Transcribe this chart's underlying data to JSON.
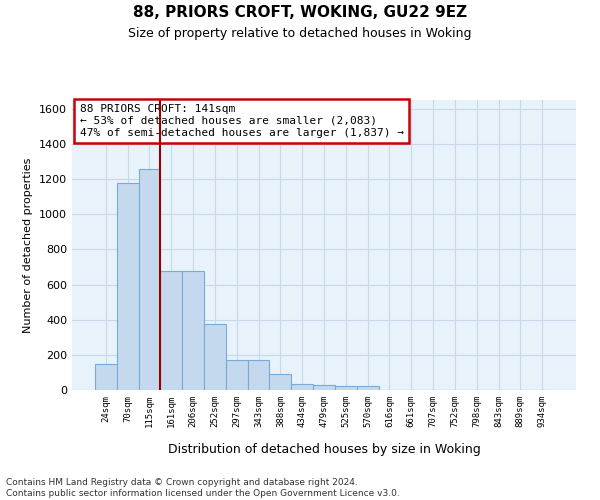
{
  "title": "88, PRIORS CROFT, WOKING, GU22 9EZ",
  "subtitle": "Size of property relative to detached houses in Woking",
  "xlabel": "Distribution of detached houses by size in Woking",
  "ylabel": "Number of detached properties",
  "bar_color": "#c5d9ee",
  "bar_edge_color": "#7aaad4",
  "grid_color": "#c8d8e8",
  "background_color": "#e8f2fb",
  "categories": [
    "24sqm",
    "70sqm",
    "115sqm",
    "161sqm",
    "206sqm",
    "252sqm",
    "297sqm",
    "343sqm",
    "388sqm",
    "434sqm",
    "479sqm",
    "525sqm",
    "570sqm",
    "616sqm",
    "661sqm",
    "707sqm",
    "752sqm",
    "798sqm",
    "843sqm",
    "889sqm",
    "934sqm"
  ],
  "values": [
    148,
    1175,
    1258,
    678,
    678,
    375,
    170,
    170,
    90,
    35,
    30,
    20,
    20,
    0,
    0,
    0,
    0,
    0,
    0,
    0,
    0
  ],
  "property_line_color": "#990000",
  "annotation_text": "88 PRIORS CROFT: 141sqm\n← 53% of detached houses are smaller (2,083)\n47% of semi-detached houses are larger (1,837) →",
  "annotation_box_color": "#ffffff",
  "annotation_edge_color": "#cc0000",
  "ylim": [
    0,
    1650
  ],
  "yticks": [
    0,
    200,
    400,
    600,
    800,
    1000,
    1200,
    1400,
    1600
  ],
  "footer_line1": "Contains HM Land Registry data © Crown copyright and database right 2024.",
  "footer_line2": "Contains public sector information licensed under the Open Government Licence v3.0."
}
